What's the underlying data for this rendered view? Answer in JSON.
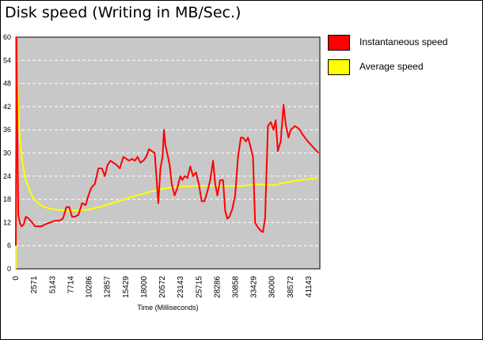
{
  "chart_data": {
    "type": "line",
    "title": "Disk speed (Writing in MB/Sec.)",
    "xlabel": "Time (Milliseconds)",
    "ylabel": "",
    "xlim": [
      0,
      42700
    ],
    "ylim": [
      0,
      60
    ],
    "x_ticks": [
      0,
      2571,
      5143,
      7714,
      10286,
      12857,
      15429,
      18000,
      20572,
      23143,
      25715,
      28286,
      30858,
      33429,
      36000,
      38572,
      41143
    ],
    "y_ticks": [
      0,
      6,
      12,
      18,
      24,
      30,
      36,
      42,
      48,
      54,
      60
    ],
    "grid": true,
    "legend_position": "right",
    "background_color": "#c8c8c8",
    "series": [
      {
        "name": "Instantaneous speed",
        "color": "#ff0000",
        "x": [
          0,
          100,
          200,
          350,
          550,
          800,
          1100,
          1400,
          1800,
          2300,
          2700,
          3200,
          3600,
          4100,
          4800,
          5500,
          6100,
          6600,
          7100,
          7500,
          7900,
          8300,
          8800,
          9300,
          9800,
          10200,
          10600,
          11100,
          11600,
          12100,
          12500,
          12900,
          13300,
          13700,
          14100,
          14600,
          15100,
          15500,
          15900,
          16300,
          16700,
          17100,
          17500,
          17900,
          18300,
          18700,
          19100,
          19500,
          20000,
          20300,
          20600,
          20800,
          21000,
          21300,
          21600,
          21900,
          22300,
          22700,
          23100,
          23400,
          23700,
          24100,
          24500,
          24900,
          25300,
          25700,
          26100,
          26500,
          26900,
          27300,
          27700,
          28000,
          28300,
          28700,
          29100,
          29400,
          29700,
          30000,
          30400,
          30800,
          31200,
          31600,
          31900,
          32300,
          32600,
          32900,
          33300,
          33600,
          33900,
          34300,
          34700,
          35000,
          35400,
          35800,
          36200,
          36500,
          36800,
          37200,
          37600,
          37900,
          38300,
          38600,
          38900,
          39200,
          39600,
          39900,
          40200,
          40600,
          41000,
          41500,
          42000,
          42500
        ],
        "values": [
          6,
          60,
          38,
          14,
          12,
          11,
          11.5,
          13.5,
          13,
          12,
          11,
          11,
          11,
          11.5,
          12,
          12.5,
          12.5,
          13,
          16,
          16,
          13.5,
          13.5,
          14,
          17,
          16.5,
          19,
          21,
          22,
          26,
          26,
          24,
          27,
          28,
          27.5,
          27,
          26,
          29,
          28.5,
          28,
          28.5,
          28,
          29,
          27.5,
          28,
          29,
          31,
          30.5,
          30,
          17,
          26,
          29,
          36,
          32,
          29.5,
          27,
          22,
          19,
          21,
          24,
          23,
          24,
          23.5,
          26.5,
          24,
          25,
          22,
          17.5,
          17.5,
          20,
          23,
          28,
          22,
          19,
          23,
          23,
          15,
          13,
          13.5,
          15.5,
          19,
          29,
          34,
          34,
          33,
          34,
          32,
          29,
          12,
          11,
          10,
          9.5,
          13,
          37,
          38,
          36,
          38.5,
          30.5,
          33,
          42.5,
          37.5,
          34,
          36,
          36.5,
          37,
          36.5,
          36,
          35,
          34,
          33,
          32,
          31,
          30
        ]
      },
      {
        "name": "Average speed",
        "color": "#ffff00",
        "x": [
          0,
          100,
          200,
          350,
          500,
          700,
          900,
          1100,
          1400,
          1700,
          2000,
          2400,
          2800,
          3300,
          3800,
          4400,
          5000,
          5700,
          6400,
          7100,
          7800,
          8500,
          9200,
          10000,
          10800,
          11700,
          12600,
          13500,
          14400,
          15300,
          16200,
          17100,
          18000,
          18900,
          19800,
          20700,
          21600,
          22500,
          23400,
          24300,
          25200,
          26100,
          27000,
          27900,
          28800,
          29700,
          30600,
          31500,
          32400,
          33300,
          34200,
          35100,
          36000,
          36900,
          37800,
          38700,
          39600,
          40500,
          41400,
          42300
        ],
        "values": [
          0,
          60,
          50,
          42,
          36,
          31,
          28,
          25.5,
          23,
          21.5,
          20,
          18.5,
          17.5,
          16.8,
          16.2,
          15.8,
          15.5,
          15.3,
          15.2,
          15.1,
          15.1,
          15.1,
          15.2,
          15.3,
          15.6,
          16,
          16.5,
          17,
          17.5,
          18,
          18.6,
          19.1,
          19.5,
          20,
          20.3,
          20.7,
          21,
          21.2,
          21.3,
          21.4,
          21.5,
          21.5,
          21.5,
          21.5,
          21.5,
          21.5,
          21.5,
          21.4,
          21.6,
          21.8,
          21.9,
          21.8,
          21.6,
          22,
          22.3,
          22.6,
          22.9,
          23.1,
          23.3,
          23.5
        ]
      }
    ]
  }
}
